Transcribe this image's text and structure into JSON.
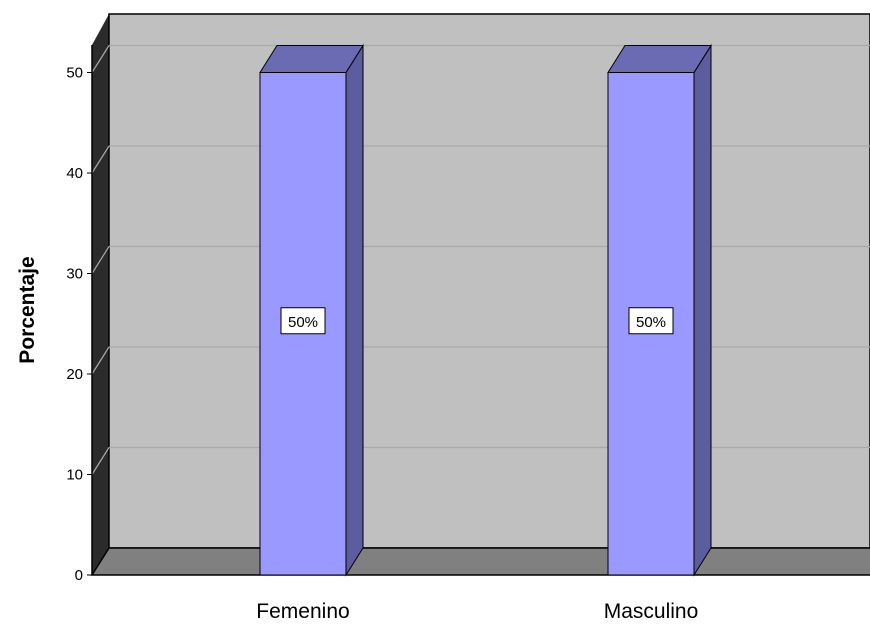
{
  "chart_data": {
    "type": "bar",
    "categories": [
      "Femenino",
      "Masculino"
    ],
    "values": [
      50,
      50
    ],
    "data_labels": [
      "50%",
      "50%"
    ],
    "ylabel": "Porcentaje",
    "xlabel": "",
    "ylim": [
      0,
      50
    ],
    "yticks": [
      0,
      10,
      20,
      30,
      40,
      50
    ],
    "grid": true,
    "colors": {
      "bar_front": "#9999ff",
      "bar_side": "#5c5c9e",
      "bar_top": "#6b6bb3",
      "wall": "#c0c0c0",
      "floor": "#808080",
      "left_wall": "#2b2b2b",
      "gridline": "#a9a9a9"
    }
  }
}
